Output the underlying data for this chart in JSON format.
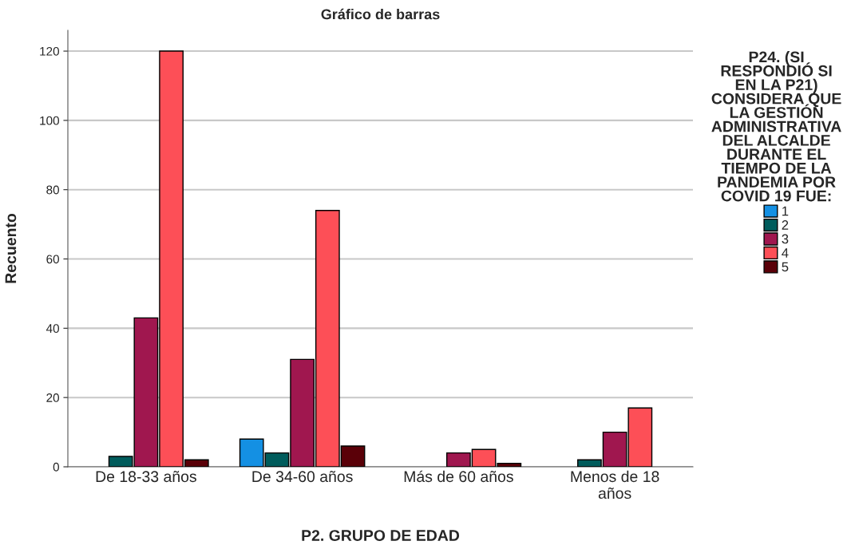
{
  "chart_data": {
    "type": "bar",
    "title": "Gráfico de barras",
    "xlabel": "P2. GRUPO DE EDAD",
    "ylabel": "Recuento",
    "legend_title": "P24. (SI\nRESPONDIÓ SI\nEN LA P21)\nCONSIDERA QUE\nLA GESTIÓN\nADMINISTRATIVA\nDEL ALCALDE\nDURANTE EL\nTIEMPO DE LA\nPANDEMIA POR\nCOVID 19 FUE:",
    "categories": [
      "De 18-33 años",
      "De 34-60 años",
      "Más de 60 años",
      "Menos de 18\naños"
    ],
    "series": [
      {
        "name": "1",
        "color": "#1490e3",
        "values": [
          null,
          8,
          null,
          null
        ]
      },
      {
        "name": "2",
        "color": "#005c5c",
        "values": [
          3,
          4,
          null,
          2
        ]
      },
      {
        "name": "3",
        "color": "#a0174f",
        "values": [
          43,
          31,
          4,
          10
        ]
      },
      {
        "name": "4",
        "color": "#fd4f57",
        "values": [
          120,
          74,
          5,
          17
        ]
      },
      {
        "name": "5",
        "color": "#5a0008",
        "values": [
          2,
          6,
          1,
          null
        ]
      }
    ],
    "ylim": [
      0,
      126
    ],
    "yticks": [
      0,
      20,
      40,
      60,
      80,
      100,
      120
    ],
    "grid": "y",
    "legend": "right"
  }
}
